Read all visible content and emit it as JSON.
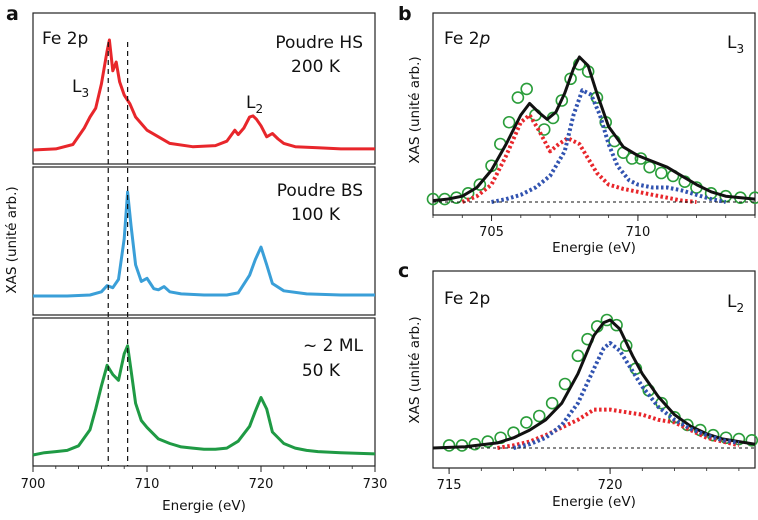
{
  "panels": {
    "a": {
      "letter": "a",
      "element_label": "Fe 2p",
      "xlabel": "Energie (eV)",
      "ylabel": "XAS (unité arb.)",
      "x_ticks": [
        "700",
        "710",
        "720",
        "730"
      ],
      "subpanels": [
        {
          "line1": "Poudre HS",
          "line2": "200 K",
          "L3": "L",
          "L3_sub": "3",
          "L2": "L",
          "L2_sub": "2"
        },
        {
          "line1": "Poudre BS",
          "line2": "100 K"
        },
        {
          "line1": "~ 2 ML",
          "line2": "50 K"
        }
      ]
    },
    "b": {
      "letter": "b",
      "element_label": "Fe 2",
      "element_italic": "p",
      "edge": "L",
      "edge_sub": "3",
      "xlabel": "Energie (eV)",
      "ylabel": "XAS (unité arb.)",
      "x_ticks": [
        "705",
        "710"
      ]
    },
    "c": {
      "letter": "c",
      "element_label": "Fe 2p",
      "edge": "L",
      "edge_sub": "2",
      "xlabel": "Energie (eV)",
      "ylabel": "XAS (unité arb.)",
      "x_ticks": [
        "715",
        "720",
        "725"
      ]
    }
  },
  "colors": {
    "hs": "#e8262b",
    "bs": "#3a9fd8",
    "ml": "#1f9a44",
    "fit_black": "#111111",
    "fit_red": "#e8262b",
    "fit_blue": "#3153b0",
    "circle_green": "#2a9d3a"
  },
  "chart_data": [
    {
      "type": "line",
      "panel": "a",
      "xlim": [
        700,
        730
      ],
      "dashed_vlines_x": [
        706.6,
        708.3
      ],
      "series": [
        {
          "name": "Poudre HS 200 K",
          "color": "#e8262b",
          "x": [
            700,
            702,
            703.5,
            704.5,
            705,
            705.5,
            706,
            706.5,
            706.7,
            707,
            707.3,
            707.6,
            708,
            708.5,
            709,
            710,
            711,
            712,
            714,
            716,
            717,
            717.7,
            718,
            718.5,
            719,
            719.3,
            719.6,
            720,
            720.5,
            721,
            721.5,
            722,
            723,
            725,
            727,
            730
          ],
          "y": [
            0,
            0.01,
            0.05,
            0.2,
            0.3,
            0.38,
            0.6,
            0.9,
            1.0,
            0.72,
            0.8,
            0.62,
            0.5,
            0.42,
            0.3,
            0.18,
            0.12,
            0.06,
            0.03,
            0.04,
            0.08,
            0.18,
            0.14,
            0.2,
            0.3,
            0.31,
            0.28,
            0.22,
            0.12,
            0.15,
            0.1,
            0.06,
            0.03,
            0.02,
            0.01,
            0.01
          ]
        },
        {
          "name": "Poudre BS 100 K",
          "color": "#3a9fd8",
          "x": [
            700,
            703,
            705,
            706,
            706.5,
            707,
            707.5,
            708,
            708.3,
            708.6,
            709,
            709.5,
            710,
            710.3,
            710.6,
            711,
            711.5,
            712,
            713,
            715,
            717,
            718,
            719,
            719.5,
            720,
            720.5,
            721,
            722,
            724,
            727,
            730
          ],
          "y": [
            0,
            0,
            0.01,
            0.04,
            0.1,
            0.08,
            0.16,
            0.55,
            1.0,
            0.68,
            0.3,
            0.14,
            0.17,
            0.12,
            0.07,
            0.06,
            0.09,
            0.04,
            0.02,
            0.01,
            0.01,
            0.03,
            0.2,
            0.35,
            0.47,
            0.3,
            0.12,
            0.05,
            0.02,
            0.01,
            0.01
          ]
        },
        {
          "name": "~ 2 ML 50 K",
          "color": "#1f9a44",
          "x": [
            700,
            701,
            702,
            703,
            704,
            705,
            705.5,
            706,
            706.5,
            707,
            707.5,
            708,
            708.3,
            708.6,
            709,
            709.5,
            710,
            711,
            712,
            713,
            714,
            715,
            716,
            717,
            718,
            719,
            719.5,
            720,
            720.5,
            721,
            722,
            723,
            724,
            725,
            727,
            730
          ],
          "y": [
            0,
            0.02,
            0.03,
            0.04,
            0.08,
            0.22,
            0.4,
            0.6,
            0.78,
            0.7,
            0.65,
            0.88,
            0.95,
            0.74,
            0.45,
            0.3,
            0.24,
            0.14,
            0.1,
            0.07,
            0.06,
            0.05,
            0.05,
            0.06,
            0.12,
            0.25,
            0.38,
            0.5,
            0.4,
            0.2,
            0.1,
            0.06,
            0.04,
            0.03,
            0.02,
            0.01
          ]
        }
      ]
    },
    {
      "type": "line",
      "panel": "b",
      "xlim": [
        703,
        714
      ],
      "series": [
        {
          "name": "data",
          "style": "circles",
          "color": "#2a9d3a",
          "x": [
            703,
            703.4,
            703.8,
            704.2,
            704.6,
            705,
            705.3,
            705.6,
            705.9,
            706.2,
            706.5,
            706.8,
            707.1,
            707.4,
            707.7,
            708,
            708.3,
            708.6,
            708.9,
            709.2,
            709.5,
            709.8,
            710.1,
            710.4,
            710.8,
            711.2,
            711.6,
            712,
            712.5,
            713,
            713.5,
            714
          ],
          "y": [
            0.02,
            0.02,
            0.03,
            0.06,
            0.12,
            0.25,
            0.4,
            0.55,
            0.72,
            0.78,
            0.6,
            0.5,
            0.58,
            0.7,
            0.85,
            0.95,
            0.9,
            0.72,
            0.55,
            0.42,
            0.34,
            0.3,
            0.3,
            0.24,
            0.2,
            0.18,
            0.14,
            0.1,
            0.06,
            0.04,
            0.03,
            0.03
          ]
        },
        {
          "name": "fit",
          "style": "solid",
          "color": "#111111",
          "x": [
            703,
            703.5,
            704,
            704.5,
            705,
            705.5,
            706,
            706.3,
            706.6,
            706.9,
            707.2,
            707.5,
            707.8,
            708,
            708.3,
            708.6,
            709,
            709.5,
            710,
            710.5,
            711,
            711.5,
            712,
            712.5,
            713,
            714
          ],
          "y": [
            0.01,
            0.02,
            0.04,
            0.1,
            0.22,
            0.4,
            0.6,
            0.68,
            0.62,
            0.57,
            0.62,
            0.75,
            0.92,
            1.0,
            0.94,
            0.75,
            0.52,
            0.38,
            0.32,
            0.28,
            0.24,
            0.18,
            0.12,
            0.07,
            0.04,
            0.02
          ]
        },
        {
          "name": "component 1",
          "style": "dotted",
          "color": "#e8262b",
          "x": [
            704,
            704.5,
            705,
            705.5,
            706,
            706.3,
            706.6,
            707,
            707.3,
            707.6,
            708,
            708.3,
            708.6,
            709,
            709.5,
            710,
            710.5,
            711,
            711.5,
            712
          ],
          "y": [
            0,
            0.04,
            0.12,
            0.32,
            0.55,
            0.6,
            0.5,
            0.35,
            0.4,
            0.44,
            0.4,
            0.3,
            0.2,
            0.12,
            0.09,
            0.07,
            0.05,
            0.03,
            0.01,
            0
          ]
        },
        {
          "name": "component 2",
          "style": "dotted",
          "color": "#3153b0",
          "x": [
            705,
            705.5,
            706,
            706.5,
            707,
            707.5,
            707.8,
            708.1,
            708.4,
            708.7,
            709,
            709.3,
            709.7,
            710,
            710.5,
            711,
            711.5,
            712,
            712.5,
            713
          ],
          "y": [
            0,
            0.02,
            0.05,
            0.1,
            0.18,
            0.35,
            0.6,
            0.77,
            0.74,
            0.6,
            0.4,
            0.25,
            0.15,
            0.12,
            0.1,
            0.1,
            0.08,
            0.05,
            0.02,
            0
          ]
        },
        {
          "name": "baseline",
          "style": "dashed",
          "color": "#111111",
          "x": [
            703,
            714
          ],
          "y": [
            0,
            0
          ]
        }
      ]
    },
    {
      "type": "line",
      "panel": "c",
      "xlim": [
        714.5,
        724.5
      ],
      "series": [
        {
          "name": "data",
          "style": "circles",
          "color": "#2a9d3a",
          "x": [
            715,
            715.4,
            715.8,
            716.2,
            716.6,
            717,
            717.4,
            717.8,
            718.2,
            718.6,
            719,
            719.3,
            719.6,
            719.9,
            720.2,
            720.5,
            720.8,
            721.2,
            721.6,
            722,
            722.4,
            722.8,
            723.2,
            723.6,
            724,
            724.4
          ],
          "y": [
            0.02,
            0.02,
            0.03,
            0.05,
            0.08,
            0.12,
            0.2,
            0.25,
            0.35,
            0.5,
            0.72,
            0.85,
            0.95,
            1.0,
            0.96,
            0.8,
            0.62,
            0.45,
            0.35,
            0.24,
            0.18,
            0.14,
            0.1,
            0.08,
            0.07,
            0.06
          ]
        },
        {
          "name": "fit",
          "style": "solid",
          "color": "#111111",
          "x": [
            714.5,
            715.5,
            716.5,
            717,
            717.5,
            718,
            718.5,
            719,
            719.5,
            719.8,
            720,
            720.3,
            720.7,
            721,
            721.5,
            722,
            722.5,
            723,
            723.5,
            724,
            724.5
          ],
          "y": [
            0,
            0.01,
            0.04,
            0.08,
            0.14,
            0.22,
            0.35,
            0.58,
            0.88,
            0.98,
            1.0,
            0.93,
            0.72,
            0.58,
            0.4,
            0.26,
            0.17,
            0.11,
            0.07,
            0.05,
            0.03
          ]
        },
        {
          "name": "component 1",
          "style": "dotted",
          "color": "#e8262b",
          "x": [
            716.5,
            717,
            717.5,
            718,
            718.5,
            719,
            719.5,
            720,
            720.5,
            721,
            721.5,
            722,
            722.5,
            723,
            724
          ],
          "y": [
            0,
            0.02,
            0.05,
            0.1,
            0.16,
            0.22,
            0.3,
            0.3,
            0.28,
            0.26,
            0.22,
            0.2,
            0.14,
            0.08,
            0.02
          ]
        },
        {
          "name": "component 2",
          "style": "dotted",
          "color": "#3153b0",
          "x": [
            717,
            717.5,
            718,
            718.5,
            719,
            719.5,
            719.8,
            720,
            720.3,
            720.7,
            721,
            721.5,
            722,
            722.5,
            723,
            723.5,
            724
          ],
          "y": [
            0,
            0.03,
            0.08,
            0.18,
            0.35,
            0.62,
            0.78,
            0.82,
            0.76,
            0.6,
            0.48,
            0.32,
            0.22,
            0.15,
            0.1,
            0.06,
            0.04
          ]
        },
        {
          "name": "baseline",
          "style": "dashed",
          "color": "#111111",
          "x": [
            714.5,
            724.5
          ],
          "y": [
            0,
            0
          ]
        }
      ]
    }
  ]
}
